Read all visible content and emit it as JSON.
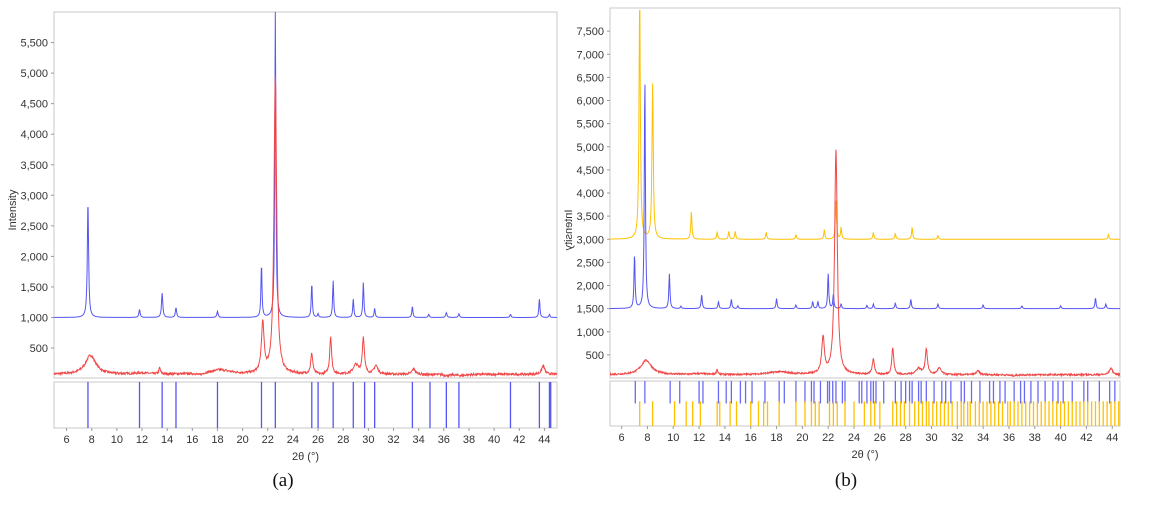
{
  "chart_data": [
    {
      "type": "line",
      "caption": "(a)",
      "xlabel": "2θ (°)",
      "ylabel": "Intensity",
      "xlim": [
        5,
        45
      ],
      "ylim": [
        10,
        6000
      ],
      "xticks": [
        6,
        8,
        10,
        12,
        14,
        16,
        18,
        20,
        22,
        24,
        26,
        28,
        30,
        32,
        34,
        36,
        38,
        40,
        42,
        44
      ],
      "yticks": [
        500,
        1000,
        1500,
        2000,
        2500,
        3000,
        3500,
        4000,
        4500,
        5000,
        5500
      ],
      "ytick_labels": [
        "500",
        "1,000",
        "1,500",
        "2,000",
        "2,500",
        "3,000",
        "3,500",
        "4,000",
        "4,500",
        "5,000",
        "5,500"
      ],
      "grid": false,
      "series": [
        {
          "color": "#5555f2",
          "baseline": 1000,
          "noise": 0,
          "peaks": [
            [
              7.7,
              2900,
              0.12
            ],
            [
              11.8,
              1130,
              0.12
            ],
            [
              13.6,
              1400,
              0.12
            ],
            [
              14.7,
              1160,
              0.12
            ],
            [
              18.0,
              1100,
              0.12
            ],
            [
              21.5,
              1860,
              0.1
            ],
            [
              22.6,
              6000,
              0.1
            ],
            [
              25.5,
              1550,
              0.1
            ],
            [
              26.0,
              1060,
              0.1
            ],
            [
              27.2,
              1600,
              0.1
            ],
            [
              28.8,
              1300,
              0.1
            ],
            [
              29.6,
              1570,
              0.1
            ],
            [
              30.5,
              1150,
              0.1
            ],
            [
              33.5,
              1180,
              0.1
            ],
            [
              34.8,
              1050,
              0.12
            ],
            [
              36.2,
              1080,
              0.12
            ],
            [
              37.2,
              1060,
              0.12
            ],
            [
              41.3,
              1050,
              0.12
            ],
            [
              43.6,
              1300,
              0.1
            ],
            [
              44.4,
              1050,
              0.1
            ]
          ]
        },
        {
          "color": "#f04848",
          "baseline": 70,
          "noise": 18,
          "peaks": [
            [
              7.9,
              380,
              1.0
            ],
            [
              12.0,
              90,
              1.2
            ],
            [
              13.4,
              170,
              0.15
            ],
            [
              14.9,
              70,
              0.8
            ],
            [
              16.6,
              40,
              0.5
            ],
            [
              18.2,
              140,
              2.0
            ],
            [
              21.6,
              880,
              0.25
            ],
            [
              22.6,
              4950,
              0.25
            ],
            [
              25.5,
              400,
              0.2
            ],
            [
              26.2,
              60,
              0.5
            ],
            [
              27.0,
              680,
              0.18
            ],
            [
              29.0,
              220,
              0.5
            ],
            [
              29.6,
              660,
              0.2
            ],
            [
              30.6,
              210,
              0.35
            ],
            [
              33.6,
              160,
              0.3
            ],
            [
              34.8,
              60,
              0.4
            ],
            [
              36.3,
              50,
              0.6
            ],
            [
              37.4,
              50,
              0.8
            ],
            [
              43.9,
              210,
              0.3
            ]
          ]
        }
      ],
      "reference_sticks": [
        {
          "color": "#5555f2",
          "positions": [
            7.7,
            11.8,
            13.6,
            14.7,
            18.0,
            21.5,
            22.6,
            25.5,
            26.0,
            27.2,
            28.8,
            29.7,
            30.5,
            33.5,
            34.9,
            36.2,
            37.2,
            41.3,
            43.6,
            44.4,
            44.5
          ]
        }
      ]
    },
    {
      "type": "line",
      "caption": "(b)",
      "xlabel": "2θ (°)",
      "ylabel": "Intensity",
      "xlim": [
        5.1,
        44.6
      ],
      "ylim": [
        0,
        8000
      ],
      "xticks": [
        6,
        8,
        10,
        12,
        14,
        16,
        18,
        20,
        22,
        24,
        26,
        28,
        30,
        32,
        34,
        36,
        38,
        40,
        42,
        44
      ],
      "yticks": [
        500,
        1000,
        1500,
        2000,
        2500,
        3000,
        3500,
        4000,
        4500,
        5000,
        5500,
        6000,
        6500,
        7000,
        7500
      ],
      "ytick_labels": [
        "500",
        "1,000",
        "1,500",
        "2,000",
        "2,500",
        "3,000",
        "3,500",
        "4,000",
        "4,500",
        "5,000",
        "5,500",
        "6,000",
        "6,500",
        "7,000",
        "7,500"
      ],
      "grid": false,
      "series": [
        {
          "color": "#ffc000",
          "baseline": 3000,
          "noise": 0,
          "peaks": [
            [
              7.4,
              8200,
              0.12
            ],
            [
              8.4,
              6350,
              0.12
            ],
            [
              11.4,
              3600,
              0.1
            ],
            [
              13.4,
              3150,
              0.1
            ],
            [
              14.3,
              3170,
              0.1
            ],
            [
              14.8,
              3170,
              0.1
            ],
            [
              17.2,
              3150,
              0.1
            ],
            [
              19.5,
              3100,
              0.1
            ],
            [
              21.7,
              3200,
              0.1
            ],
            [
              22.6,
              3850,
              0.1
            ],
            [
              23.0,
              3250,
              0.1
            ],
            [
              25.5,
              3150,
              0.1
            ],
            [
              27.2,
              3120,
              0.1
            ],
            [
              28.5,
              3250,
              0.1
            ],
            [
              30.5,
              3080,
              0.1
            ],
            [
              43.7,
              3100,
              0.1
            ]
          ]
        },
        {
          "color": "#5555f2",
          "baseline": 1500,
          "noise": 0,
          "peaks": [
            [
              7.0,
              2650,
              0.1
            ],
            [
              7.8,
              6480,
              0.1
            ],
            [
              9.7,
              2250,
              0.1
            ],
            [
              10.6,
              1550,
              0.1
            ],
            [
              12.2,
              1800,
              0.1
            ],
            [
              13.5,
              1650,
              0.1
            ],
            [
              14.5,
              1700,
              0.1
            ],
            [
              15.0,
              1560,
              0.1
            ],
            [
              18.0,
              1720,
              0.1
            ],
            [
              19.5,
              1580,
              0.1
            ],
            [
              20.8,
              1650,
              0.1
            ],
            [
              21.2,
              1650,
              0.1
            ],
            [
              22.0,
              2250,
              0.1
            ],
            [
              22.4,
              1800,
              0.1
            ],
            [
              23.0,
              1600,
              0.1
            ],
            [
              25.0,
              1570,
              0.1
            ],
            [
              25.5,
              1600,
              0.1
            ],
            [
              27.2,
              1620,
              0.1
            ],
            [
              28.4,
              1700,
              0.1
            ],
            [
              30.5,
              1600,
              0.1
            ],
            [
              34.0,
              1580,
              0.1
            ],
            [
              37.0,
              1560,
              0.1
            ],
            [
              40.0,
              1560,
              0.1
            ],
            [
              42.7,
              1730,
              0.1
            ],
            [
              43.5,
              1600,
              0.1
            ]
          ]
        },
        {
          "color": "#f04848",
          "baseline": 70,
          "noise": 18,
          "peaks": [
            [
              7.9,
              380,
              1.0
            ],
            [
              12.0,
              90,
              1.2
            ],
            [
              13.4,
              170,
              0.15
            ],
            [
              14.9,
              70,
              0.8
            ],
            [
              18.2,
              130,
              2.0
            ],
            [
              21.6,
              850,
              0.25
            ],
            [
              22.6,
              4950,
              0.25
            ],
            [
              25.5,
              400,
              0.2
            ],
            [
              27.0,
              650,
              0.18
            ],
            [
              29.0,
              200,
              0.5
            ],
            [
              29.6,
              620,
              0.2
            ],
            [
              30.6,
              210,
              0.35
            ],
            [
              33.6,
              150,
              0.3
            ],
            [
              36.3,
              50,
              0.6
            ],
            [
              43.9,
              210,
              0.3
            ]
          ]
        }
      ],
      "reference_sticks": [
        {
          "color": "#6a6af5",
          "positions": [
            7.06,
            7.8,
            9.76,
            10.5,
            12.0,
            12.3,
            13.5,
            14.1,
            14.5,
            15.2,
            15.6,
            16.1,
            17.1,
            18.2,
            18.6,
            19.5,
            20.2,
            20.7,
            20.9,
            21.4,
            21.95,
            22.1,
            22.35,
            22.6,
            23.1,
            23.3,
            24.4,
            24.6,
            25.0,
            25.3,
            25.5,
            25.7,
            26.3,
            27.2,
            27.65,
            28.0,
            28.3,
            28.5,
            29.0,
            29.2,
            29.6,
            30.2,
            30.8,
            31.1,
            31.5,
            32.3,
            32.55,
            33.1,
            33.75,
            34.5,
            34.8,
            35.3,
            35.7,
            36.4,
            36.9,
            37.2,
            37.7,
            38.25,
            38.8,
            39.4,
            39.8,
            40.2,
            40.9,
            41.8,
            42.1,
            43.0,
            43.8,
            44.2
          ]
        },
        {
          "color": "#ffc000",
          "positions": [
            7.4,
            8.4,
            10.1,
            11.0,
            11.5,
            12.1,
            13.4,
            13.6,
            14.4,
            14.9,
            16.0,
            16.6,
            17.0,
            17.3,
            18.2,
            19.5,
            20.2,
            20.7,
            21.0,
            21.3,
            22.1,
            22.4,
            22.7,
            23.3,
            24.0,
            24.8,
            25.3,
            25.6,
            26.0,
            27.0,
            27.3,
            27.6,
            27.9,
            28.3,
            28.7,
            29.0,
            29.3,
            29.6,
            29.8,
            30.1,
            30.4,
            30.7,
            31.0,
            31.3,
            31.6,
            32.0,
            32.3,
            32.5,
            32.8,
            33.0,
            33.4,
            33.7,
            34.0,
            34.3,
            34.6,
            34.9,
            35.2,
            35.5,
            35.9,
            36.1,
            36.4,
            36.7,
            37.0,
            37.3,
            37.6,
            37.9,
            38.2,
            38.5,
            38.8,
            39.1,
            39.4,
            39.7,
            40.0,
            40.3,
            40.6,
            40.9,
            41.2,
            41.5,
            41.8,
            42.1,
            42.4,
            42.7,
            43.0,
            43.3,
            43.6,
            43.9,
            44.2,
            44.5
          ]
        }
      ]
    }
  ]
}
